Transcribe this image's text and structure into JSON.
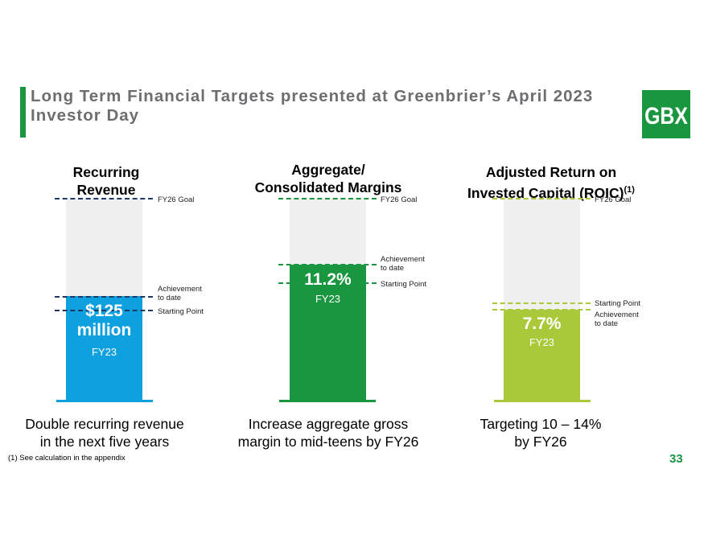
{
  "title": "Long Term Financial Targets presented at Greenbrier’s April 2023 Investor Day",
  "logo": "GBX",
  "colors": {
    "accent": "#1a9641",
    "revenue": "#0ea0df",
    "margin": "#1a9641",
    "roic": "#a9c83a"
  },
  "columns": [
    {
      "heading_line1": "Recurring",
      "heading_line2": "Revenue",
      "goal_label": "FY26 Goal",
      "achievement_label_1": "Achievement",
      "achievement_label_2": "to date",
      "starting_label": "Starting Point",
      "value_line1": "$125",
      "value_line2": "million",
      "period": "FY23",
      "caption_line1": "Double recurring revenue",
      "caption_line2": "in the next five years"
    },
    {
      "heading_line1": "Aggregate/",
      "heading_line2": "Consolidated Margins",
      "goal_label": "FY26 Goal",
      "achievement_label_1": "Achievement",
      "achievement_label_2": "to date",
      "starting_label": "Starting Point",
      "value_line1": "11.2%",
      "period": "FY23",
      "caption_line1": "Increase aggregate gross",
      "caption_line2": "margin to mid-teens by FY26"
    },
    {
      "heading_line1": "Adjusted Return on",
      "heading_line2": "Invested Capital (ROIC)",
      "heading_sup": "(1)",
      "goal_label": "FY26 Goal",
      "starting_label": "Starting Point",
      "achievement_label_1": "Achievement",
      "achievement_label_2": "to date",
      "value_line1": "7.7%",
      "period": "FY23",
      "caption_line1": "Targeting 10 – 14%",
      "caption_line2": "by FY26"
    }
  ],
  "footnote": "(1) See calculation in the appendix",
  "page_number": "33"
}
